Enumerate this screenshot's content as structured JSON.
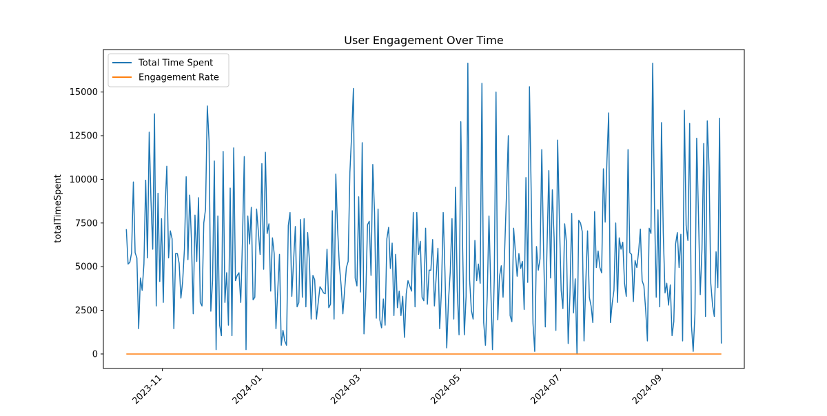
{
  "chart_data": {
    "type": "line",
    "title": "User Engagement Over Time",
    "xlabel": "",
    "ylabel": "totalTimeSpent",
    "x_start": "2023-10-10",
    "x_end": "2024-10-07",
    "xlim": [
      "2023-09-26",
      "2024-10-21"
    ],
    "ylim": [
      -830,
      17430
    ],
    "x_ticks": [
      "2023-11",
      "2024-01",
      "2024-03",
      "2024-05",
      "2024-07",
      "2024-09"
    ],
    "x_tick_dates": [
      "2023-11-01",
      "2024-01-01",
      "2024-03-01",
      "2024-05-01",
      "2024-07-01",
      "2024-09-01"
    ],
    "y_ticks": [
      0,
      2500,
      5000,
      7500,
      10000,
      12500,
      15000
    ],
    "grid": false,
    "legend_position": "upper left",
    "series": [
      {
        "name": "Total Time Spent",
        "color": "#1f77b4",
        "values": [
          7150,
          5150,
          5250,
          5800,
          9850,
          5800,
          5500,
          1450,
          4350,
          3650,
          5150,
          9950,
          5500,
          12700,
          8800,
          6000,
          13750,
          2750,
          9200,
          4150,
          7750,
          2950,
          8300,
          10750,
          5500,
          7050,
          6600,
          1450,
          5750,
          5750,
          5200,
          3200,
          4150,
          6000,
          10150,
          5400,
          9100,
          6500,
          2300,
          7950,
          5300,
          8950,
          2950,
          2750,
          7500,
          8300,
          14200,
          12200,
          2450,
          4200,
          11050,
          250,
          7900,
          1650,
          1050,
          11600,
          2950,
          4650,
          1650,
          9500,
          1050,
          11800,
          4200,
          4500,
          4650,
          2950,
          6600,
          11300,
          250,
          7900,
          6300,
          8400,
          3100,
          3250,
          8300,
          7000,
          5700,
          10900,
          4850,
          11550,
          6900,
          7450,
          3600,
          6650,
          5750,
          1450,
          3600,
          5700,
          500,
          1350,
          750,
          500,
          7350,
          8100,
          3300,
          5300,
          7300,
          2700,
          2950,
          7700,
          3250,
          7750,
          2700,
          6950,
          5350,
          2000,
          4500,
          4250,
          2000,
          2950,
          3850,
          3700,
          3500,
          3450,
          6000,
          2650,
          2850,
          8200,
          2000,
          10300,
          7200,
          5100,
          3950,
          2300,
          3650,
          4950,
          5300,
          10400,
          12600,
          15200,
          4350,
          3900,
          9000,
          3550,
          12100,
          1150,
          3250,
          7400,
          7600,
          4500,
          10850,
          8100,
          2050,
          8300,
          1950,
          1500,
          3150,
          1650,
          6600,
          7250,
          4900,
          6350,
          2200,
          5700,
          2650,
          3600,
          2200,
          3300,
          950,
          3450,
          4200,
          3900,
          3600,
          8100,
          2700,
          8100,
          5700,
          6450,
          3250,
          3050,
          7200,
          2850,
          4800,
          4800,
          6550,
          2750,
          4400,
          6050,
          1450,
          3600,
          8100,
          4700,
          350,
          3050,
          4700,
          7750,
          2000,
          9550,
          3600,
          1100,
          13300,
          6300,
          1100,
          3300,
          16650,
          4250,
          2500,
          2000,
          6500,
          4200,
          5150,
          4050,
          15500,
          1800,
          500,
          3300,
          7900,
          3850,
          250,
          4300,
          15000,
          1950,
          4450,
          5050,
          3250,
          6200,
          9300,
          12500,
          2200,
          1850,
          7200,
          5850,
          4450,
          5750,
          4900,
          5300,
          2550,
          10100,
          4100,
          15300,
          9150,
          1750,
          150,
          6150,
          4800,
          5450,
          11700,
          6050,
          1550,
          6250,
          10500,
          4350,
          9400,
          6650,
          1350,
          12250,
          7700,
          3650,
          2600,
          7450,
          6400,
          600,
          3400,
          8050,
          2350,
          4300,
          0,
          7650,
          7500,
          7000,
          750,
          4100,
          7050,
          3250,
          2750,
          1800,
          8150,
          4950,
          5900,
          4950,
          4650,
          10600,
          7550,
          11050,
          13800,
          1800,
          2900,
          3650,
          7500,
          2950,
          6650,
          6000,
          6400,
          4050,
          3300,
          11700,
          5800,
          5700,
          3000,
          5350,
          4950,
          5850,
          7150,
          4200,
          3900,
          2550,
          750,
          7200,
          6900,
          16650,
          8550,
          3250,
          8250,
          2700,
          13250,
          6950,
          3500,
          4050,
          2800,
          3950,
          1050,
          1850,
          6300,
          6950,
          4950,
          6850,
          750,
          13950,
          7350,
          6500,
          13200,
          1650,
          150,
          2300,
          12350,
          8000,
          3400,
          6000,
          12050,
          2150,
          13350,
          10700,
          4050,
          2800,
          2150,
          5850,
          3800,
          13500,
          600
        ]
      },
      {
        "name": "Engagement Rate",
        "color": "#ff7f0e",
        "values": [
          0,
          0
        ]
      }
    ]
  }
}
